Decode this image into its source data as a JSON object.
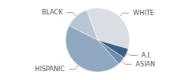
{
  "chart_data": {
    "type": "pie",
    "categories": [
      "WHITE",
      "A.I.",
      "ASIAN",
      "HISPANIC",
      "BLACK"
    ],
    "values": [
      35,
      5,
      4,
      44,
      12
    ],
    "colors": [
      "#dadee4",
      "#3d5f82",
      "#6e8db0",
      "#8fa7bf",
      "#b8c6d4"
    ],
    "data_labels": false
  }
}
